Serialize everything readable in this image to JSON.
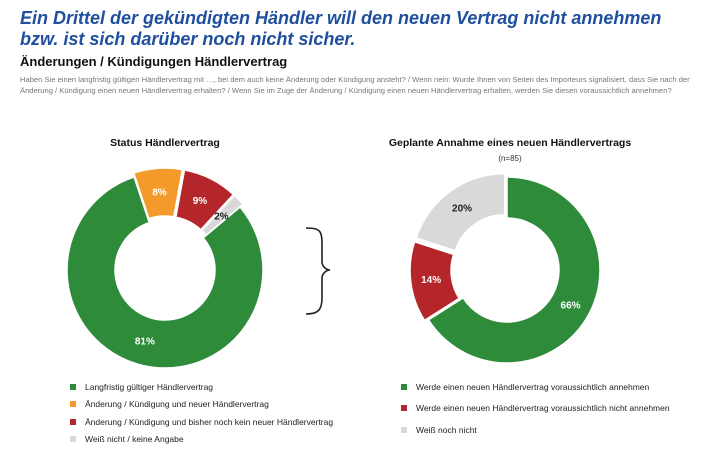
{
  "headline": "Ein Drittel der gekündigten Händler will den neuen Vertrag nicht annehmen bzw. ist sich darüber noch nicht sicher.",
  "section_title": "Änderungen / Kündigungen Händlervertrag",
  "question": "Haben Sie einen langfristig gültigen Händlervertrag mit …, bei dem auch keine Änderung oder Kündigung ansteht? / Wenn nein: Wurde Ihnen von Seiten des Importeurs signalisiert, dass Sie nach der Änderung / Kündigung einen neuen Händlervertrag erhalten? / Wenn Sie im Zuge der Änderung / Kündigung einen neuen Händlervertrag erhalten, werden Sie diesen voraussichtlich annehmen?",
  "colors": {
    "green": "#2e8b3a",
    "orange": "#f39a2b",
    "red": "#b5262a",
    "grey": "#d9d9d9"
  },
  "chart_data": [
    {
      "type": "pie",
      "title": "Status Händlervertrag",
      "subtitle": "",
      "slices": [
        {
          "label": "Langfristig gültiger Händlervertrag",
          "value": 81,
          "display": "81%",
          "color": "#2e8b3a"
        },
        {
          "label": "Änderung / Kündigung und neuer Händlervertrag",
          "value": 8,
          "display": "8%",
          "color": "#f39a2b"
        },
        {
          "label": "Änderung / Kündigung und bisher noch kein neuer Händlervertrag",
          "value": 9,
          "display": "9%",
          "color": "#b5262a"
        },
        {
          "label": "Weiß nicht / keine Angabe",
          "value": 2,
          "display": "2%",
          "color": "#d9d9d9"
        }
      ]
    },
    {
      "type": "pie",
      "title": "Geplante Annahme eines neuen Händlervertrags",
      "subtitle": "(n=85)",
      "slices": [
        {
          "label": "Werde einen neuen Händlervertrag voraussichtlich annehmen",
          "value": 66,
          "display": "66%",
          "color": "#2e8b3a"
        },
        {
          "label": "Werde einen neuen Händlervertrag voraussichtlich nicht annehmen",
          "value": 14,
          "display": "14%",
          "color": "#b5262a"
        },
        {
          "label": "Weiß noch nicht",
          "value": 20,
          "display": "20%",
          "color": "#d9d9d9"
        }
      ]
    }
  ]
}
